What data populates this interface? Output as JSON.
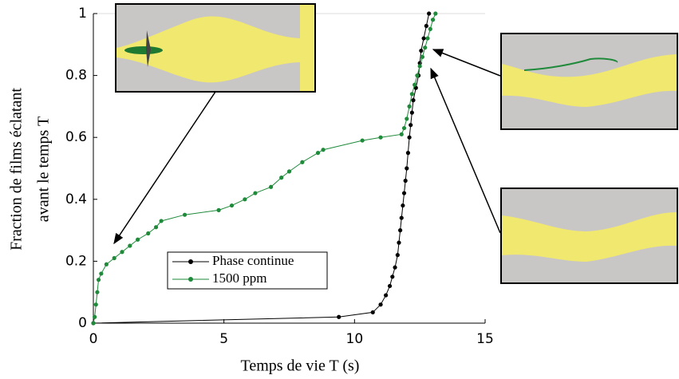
{
  "chart_data": {
    "type": "line",
    "xlabel": "Temps de vie T (s)",
    "ylabel": [
      "Fraction de films éclatant",
      "avant le temps T"
    ],
    "xlim": [
      0,
      15
    ],
    "xticks": [
      0,
      5,
      10,
      15
    ],
    "ylim": [
      0,
      1
    ],
    "yticks": [
      0,
      0.2,
      0.4,
      0.6,
      0.8,
      1
    ],
    "series": [
      {
        "name": "Phase continue",
        "color": "#000000",
        "x": [
          0,
          9.4,
          10.7,
          11.0,
          11.2,
          11.35,
          11.45,
          11.55,
          11.65,
          11.7,
          11.75,
          11.8,
          11.85,
          11.9,
          11.95,
          12.0,
          12.05,
          12.1,
          12.15,
          12.2,
          12.25,
          12.35,
          12.45,
          12.5,
          12.55,
          12.65,
          12.75,
          12.85
        ],
        "values": [
          0,
          0.02,
          0.035,
          0.06,
          0.09,
          0.12,
          0.15,
          0.18,
          0.22,
          0.26,
          0.3,
          0.34,
          0.38,
          0.42,
          0.46,
          0.5,
          0.55,
          0.6,
          0.64,
          0.68,
          0.72,
          0.76,
          0.8,
          0.84,
          0.88,
          0.92,
          0.96,
          1.0
        ]
      },
      {
        "name": "1500 ppm",
        "color": "#1e8a3a",
        "x": [
          0,
          0.05,
          0.1,
          0.15,
          0.2,
          0.3,
          0.5,
          0.8,
          1.1,
          1.4,
          1.7,
          2.1,
          2.4,
          2.6,
          3.5,
          4.8,
          5.3,
          5.8,
          6.2,
          6.8,
          7.2,
          7.5,
          8.0,
          8.6,
          8.8,
          10.3,
          11.0,
          11.8,
          11.9,
          12.0,
          12.1,
          12.2,
          12.3,
          12.4,
          12.5,
          12.6,
          12.7,
          12.8,
          12.9,
          13.0,
          13.1
        ],
        "values": [
          0,
          0.02,
          0.06,
          0.1,
          0.14,
          0.16,
          0.19,
          0.21,
          0.23,
          0.25,
          0.27,
          0.29,
          0.31,
          0.33,
          0.35,
          0.365,
          0.38,
          0.4,
          0.42,
          0.44,
          0.47,
          0.49,
          0.52,
          0.55,
          0.56,
          0.59,
          0.6,
          0.61,
          0.63,
          0.66,
          0.7,
          0.74,
          0.77,
          0.8,
          0.83,
          0.86,
          0.89,
          0.92,
          0.95,
          0.98,
          1.0
        ]
      }
    ]
  }
}
